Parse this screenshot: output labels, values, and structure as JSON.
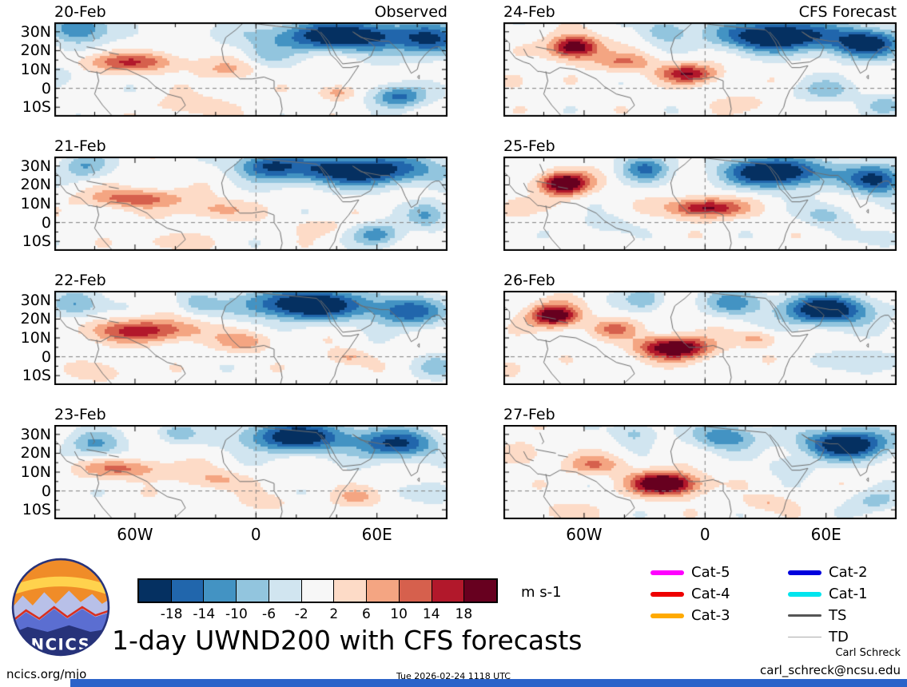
{
  "title": {
    "text": "1-day UWND200 with CFS forecasts"
  },
  "branding": {
    "logo_text": "NCICS"
  },
  "footer": {
    "site": "ncics.org/mjo",
    "timestamp": "Tue 2026-02-24 1118 UTC",
    "credit_name": "Carl Schreck",
    "credit_email": "carl_schreck@ncsu.edu"
  },
  "legend": {
    "items": [
      {
        "label": "Cat-5",
        "color": "#ff00ff",
        "thickness": 6
      },
      {
        "label": "Cat-4",
        "color": "#ee0000",
        "thickness": 6
      },
      {
        "label": "Cat-3",
        "color": "#ffaa00",
        "thickness": 6
      },
      {
        "label": "Cat-2",
        "color": "#0000dd",
        "thickness": 6
      },
      {
        "label": "Cat-1",
        "color": "#00e5ee",
        "thickness": 6
      },
      {
        "label": "TS",
        "color": "#555555",
        "thickness": 2.5
      },
      {
        "label": "TD",
        "color": "#aaaaaa",
        "thickness": 1.5
      }
    ]
  },
  "chart_data": {
    "type": "heatmap",
    "variable": "UWND200 anomaly",
    "units_display": "m s-1",
    "columns": [
      {
        "heading": "Observed"
      },
      {
        "heading": "CFS Forecast"
      }
    ],
    "lon_range": [
      -100,
      95
    ],
    "lat_range": [
      -15,
      35
    ],
    "x_ticks": [
      "60W",
      "0",
      "60E"
    ],
    "x_tick_lons": [
      -60,
      0,
      60
    ],
    "y_ticks": [
      "30N",
      "20N",
      "10N",
      "0",
      "10S"
    ],
    "y_tick_lats": [
      30,
      20,
      10,
      0,
      -10
    ],
    "levels": [
      -18,
      -14,
      -10,
      -6,
      -2,
      2,
      6,
      10,
      14,
      18
    ],
    "palette": [
      "#053061",
      "#2166ac",
      "#4393c3",
      "#92c5de",
      "#d1e5f0",
      "#f7f7f7",
      "#fddbc7",
      "#f4a582",
      "#d6604d",
      "#b2182b",
      "#67001f"
    ],
    "panels": [
      {
        "date": "20-Feb",
        "corner": "Observed",
        "features": [
          [
            45,
            28,
            -24,
            40,
            8
          ],
          [
            -88,
            32,
            -16,
            14,
            8
          ],
          [
            88,
            24,
            -12,
            14,
            9
          ],
          [
            -62,
            14,
            13,
            26,
            5
          ],
          [
            -15,
            10,
            6,
            14,
            5
          ],
          [
            70,
            -4,
            -16,
            13,
            6
          ],
          [
            40,
            -2,
            9,
            9,
            4
          ],
          [
            -30,
            -9,
            6,
            18,
            5
          ],
          [
            -100,
            6,
            -6,
            10,
            6
          ],
          [
            5,
            18,
            -5,
            12,
            6
          ]
        ]
      },
      {
        "date": "21-Feb",
        "corner": "",
        "features": [
          [
            50,
            28,
            -24,
            38,
            8
          ],
          [
            5,
            31,
            -14,
            15,
            7
          ],
          [
            -85,
            30,
            -10,
            12,
            7
          ],
          [
            -60,
            13,
            13,
            24,
            5
          ],
          [
            -20,
            7,
            8,
            16,
            5
          ],
          [
            60,
            -6,
            -12,
            12,
            6
          ],
          [
            30,
            -2,
            6,
            10,
            4
          ],
          [
            85,
            4,
            -10,
            10,
            7
          ],
          [
            -45,
            -10,
            5,
            15,
            5
          ]
        ]
      },
      {
        "date": "22-Feb",
        "corner": "",
        "features": [
          [
            25,
            28,
            -26,
            30,
            8
          ],
          [
            75,
            24,
            -16,
            18,
            8
          ],
          [
            -90,
            28,
            -12,
            12,
            7
          ],
          [
            -55,
            14,
            16,
            28,
            6
          ],
          [
            -5,
            8,
            8,
            14,
            5
          ],
          [
            45,
            0,
            7,
            10,
            4
          ],
          [
            90,
            -5,
            -8,
            10,
            6
          ],
          [
            -75,
            -8,
            5,
            12,
            5
          ],
          [
            -30,
            29,
            -8,
            10,
            6
          ]
        ]
      },
      {
        "date": "23-Feb",
        "corner": "",
        "features": [
          [
            20,
            29,
            -22,
            28,
            8
          ],
          [
            70,
            25,
            -18,
            20,
            8
          ],
          [
            -80,
            25,
            -10,
            14,
            7
          ],
          [
            -65,
            12,
            11,
            22,
            5
          ],
          [
            -20,
            6,
            7,
            16,
            5
          ],
          [
            50,
            -3,
            6,
            12,
            5
          ],
          [
            5,
            -6,
            5,
            10,
            4
          ],
          [
            -40,
            31,
            -8,
            10,
            5
          ],
          [
            90,
            -1,
            -6,
            10,
            6
          ]
        ]
      },
      {
        "date": "24-Feb",
        "corner": "CFS Forecast",
        "features": [
          [
            -65,
            22,
            24,
            12,
            6
          ],
          [
            -40,
            14,
            10,
            15,
            5
          ],
          [
            -8,
            8,
            18,
            14,
            5
          ],
          [
            35,
            28,
            -26,
            30,
            8
          ],
          [
            80,
            24,
            -20,
            18,
            8
          ],
          [
            -20,
            31,
            -10,
            10,
            6
          ],
          [
            60,
            -1,
            -8,
            15,
            6
          ],
          [
            90,
            -9,
            -8,
            10,
            5
          ],
          [
            -95,
            4,
            6,
            8,
            5
          ],
          [
            20,
            -8,
            5,
            12,
            4
          ]
        ]
      },
      {
        "date": "25-Feb",
        "corner": "",
        "features": [
          [
            -70,
            21,
            26,
            12,
            6
          ],
          [
            -30,
            29,
            -14,
            12,
            7
          ],
          [
            0,
            8,
            20,
            18,
            5
          ],
          [
            35,
            27,
            -26,
            25,
            8
          ],
          [
            85,
            23,
            -20,
            15,
            8
          ],
          [
            60,
            4,
            -8,
            12,
            6
          ],
          [
            -50,
            -1,
            -5,
            12,
            5
          ],
          [
            90,
            -8,
            -6,
            10,
            5
          ],
          [
            -95,
            8,
            6,
            8,
            5
          ]
        ]
      },
      {
        "date": "26-Feb",
        "corner": "",
        "features": [
          [
            -75,
            22,
            24,
            12,
            6
          ],
          [
            -45,
            15,
            10,
            12,
            5
          ],
          [
            -15,
            5,
            24,
            18,
            6
          ],
          [
            25,
            10,
            8,
            10,
            4
          ],
          [
            60,
            25,
            -24,
            22,
            8
          ],
          [
            15,
            29,
            -12,
            14,
            7
          ],
          [
            -30,
            31,
            -10,
            10,
            6
          ],
          [
            80,
            -2,
            -8,
            14,
            6
          ],
          [
            -98,
            -5,
            5,
            10,
            5
          ]
        ]
      },
      {
        "date": "27-Feb",
        "corner": "",
        "features": [
          [
            -20,
            4,
            28,
            16,
            6
          ],
          [
            -55,
            14,
            10,
            14,
            5
          ],
          [
            -90,
            20,
            6,
            10,
            6
          ],
          [
            70,
            25,
            -24,
            22,
            8
          ],
          [
            10,
            29,
            -14,
            16,
            7
          ],
          [
            -35,
            31,
            -8,
            10,
            6
          ],
          [
            42,
            13,
            -6,
            10,
            5
          ],
          [
            85,
            -5,
            -8,
            12,
            6
          ],
          [
            30,
            -6,
            6,
            12,
            4
          ],
          [
            -72,
            -11,
            5,
            12,
            5
          ]
        ]
      }
    ]
  }
}
